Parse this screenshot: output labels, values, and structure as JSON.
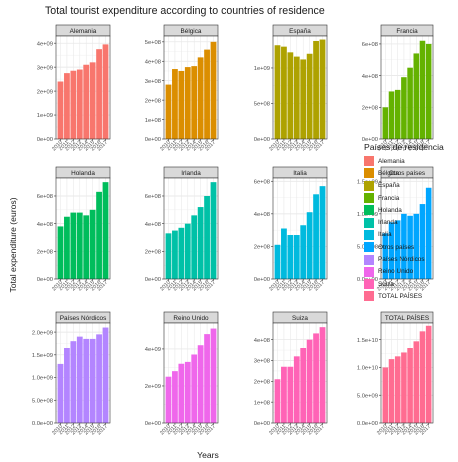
{
  "chart_data": {
    "type": "bar",
    "title": "Total tourist expenditure according to countries of residence",
    "xlabel": "Years",
    "ylabel": "Total expenditure (euros)",
    "legend_title": "Países de residencia",
    "legend_position": "right",
    "grid": true,
    "x": [
      "2010",
      "2011",
      "2012",
      "2013",
      "2014",
      "2015",
      "2016",
      "2017"
    ],
    "x_tick_labels": [
      "2010",
      "2011",
      "2012",
      "2013",
      "2014",
      "2015",
      "2016",
      "2017"
    ],
    "panels": [
      {
        "name": "Alemania",
        "color": "#F8766D",
        "values": [
          2400000000.0,
          2750000000.0,
          2850000000.0,
          2900000000.0,
          3100000000.0,
          3200000000.0,
          3750000000.0,
          3950000000.0
        ],
        "ylim": [
          0,
          4300000000.0
        ],
        "ticks": [
          0,
          1000000000.0,
          2000000000.0,
          3000000000.0,
          4000000000.0
        ],
        "tick_labels": [
          "0e+00",
          "1e+09",
          "2e+09",
          "3e+09",
          "4e+09"
        ]
      },
      {
        "name": "Bélgica",
        "color": "#DB8E00",
        "values": [
          280000000.0,
          360000000.0,
          350000000.0,
          370000000.0,
          375000000.0,
          420000000.0,
          460000000.0,
          500000000.0
        ],
        "ylim": [
          0,
          530000000.0
        ],
        "ticks": [
          0,
          100000000.0,
          200000000.0,
          300000000.0,
          400000000.0,
          500000000.0
        ],
        "tick_labels": [
          "0e+00",
          "1e+08",
          "2e+08",
          "3e+08",
          "4e+08",
          "5e+08"
        ]
      },
      {
        "name": "España",
        "color": "#AEA200",
        "values": [
          1320000000.0,
          1300000000.0,
          1220000000.0,
          1160000000.0,
          1120000000.0,
          1200000000.0,
          1380000000.0,
          1400000000.0
        ],
        "ylim": [
          0,
          1450000000.0
        ],
        "ticks": [
          0,
          500000000.0,
          1000000000.0
        ],
        "tick_labels": [
          "0e+00",
          "5e+08",
          "1e+09"
        ]
      },
      {
        "name": "Francia",
        "color": "#64B200",
        "values": [
          200000000.0,
          300000000.0,
          310000000.0,
          390000000.0,
          450000000.0,
          540000000.0,
          620000000.0,
          600000000.0
        ],
        "ylim": [
          0,
          650000000.0
        ],
        "ticks": [
          0,
          200000000.0,
          400000000.0,
          600000000.0
        ],
        "tick_labels": [
          "0e+00",
          "2e+08",
          "4e+08",
          "6e+08"
        ]
      },
      {
        "name": "Holanda",
        "color": "#00BD5C",
        "values": [
          380000000.0,
          450000000.0,
          480000000.0,
          480000000.0,
          460000000.0,
          500000000.0,
          630000000.0,
          700000000.0
        ],
        "ylim": [
          0,
          730000000.0
        ],
        "ticks": [
          0,
          200000000.0,
          400000000.0,
          600000000.0
        ],
        "tick_labels": [
          "0e+00",
          "2e+08",
          "4e+08",
          "6e+08"
        ]
      },
      {
        "name": "Irlanda",
        "color": "#00C1A7",
        "values": [
          330000000.0,
          350000000.0,
          370000000.0,
          400000000.0,
          460000000.0,
          520000000.0,
          600000000.0,
          700000000.0
        ],
        "ylim": [
          0,
          730000000.0
        ],
        "ticks": [
          0,
          200000000.0,
          400000000.0,
          600000000.0
        ],
        "tick_labels": [
          "0e+00",
          "2e+08",
          "4e+08",
          "6e+08"
        ]
      },
      {
        "name": "Italia",
        "color": "#00BADE",
        "values": [
          210000000.0,
          310000000.0,
          270000000.0,
          270000000.0,
          330000000.0,
          410000000.0,
          520000000.0,
          570000000.0
        ],
        "ylim": [
          0,
          620000000.0
        ],
        "ticks": [
          0,
          200000000.0,
          400000000.0,
          600000000.0
        ],
        "tick_labels": [
          "0e+00",
          "2e+08",
          "4e+08",
          "6e+08"
        ]
      },
      {
        "name": "Otros países",
        "color": "#00A6FF",
        "values": [
          700000000.0,
          870000000.0,
          900000000.0,
          1000000000.0,
          970000000.0,
          1000000000.0,
          1150000000.0,
          1400000000.0
        ],
        "ylim": [
          0,
          1550000000.0
        ],
        "ticks": [
          0,
          500000000.0,
          1000000000.0,
          1500000000.0
        ],
        "tick_labels": [
          "0.0e+00",
          "5.0e+08",
          "1.0e+09",
          "1.5e+09"
        ]
      },
      {
        "name": "Países Nórdicos",
        "color": "#B385FF",
        "values": [
          1300000000.0,
          1650000000.0,
          1800000000.0,
          1900000000.0,
          1850000000.0,
          1850000000.0,
          1950000000.0,
          2100000000.0
        ],
        "ylim": [
          0,
          2200000000.0
        ],
        "ticks": [
          0,
          500000000.0,
          1000000000.0,
          1500000000.0,
          2000000000.0
        ],
        "tick_labels": [
          "0.0e+00",
          "5.0e+08",
          "1.0e+09",
          "1.5e+09",
          "2.0e+09"
        ]
      },
      {
        "name": "Reino Unido",
        "color": "#EF67EB",
        "values": [
          2500000000.0,
          2800000000.0,
          3200000000.0,
          3300000000.0,
          3700000000.0,
          4200000000.0,
          4800000000.0,
          5100000000.0
        ],
        "ylim": [
          0,
          5400000000.0
        ],
        "ticks": [
          0,
          2000000000.0,
          4000000000.0
        ],
        "tick_labels": [
          "0e+00",
          "2e+09",
          "4e+09"
        ]
      },
      {
        "name": "Suiza",
        "color": "#FF63B6",
        "values": [
          210000000.0,
          270000000.0,
          270000000.0,
          320000000.0,
          360000000.0,
          400000000.0,
          430000000.0,
          460000000.0
        ],
        "ylim": [
          0,
          480000000.0
        ],
        "ticks": [
          0,
          100000000.0,
          200000000.0,
          300000000.0,
          400000000.0
        ],
        "tick_labels": [
          "0e+00",
          "1e+08",
          "2e+08",
          "3e+08",
          "4e+08"
        ]
      },
      {
        "name": "TOTAL PAÍSES",
        "color": "#FF6C91",
        "values": [
          10000000000.0,
          11500000000.0,
          12000000000.0,
          12700000000.0,
          13500000000.0,
          14700000000.0,
          16500000000.0,
          17500000000.0
        ],
        "ylim": [
          0,
          18000000000.0
        ],
        "ticks": [
          0,
          5000000000.0,
          10000000000.0,
          15000000000.0
        ],
        "tick_labels": [
          "0.0e+00",
          "5.0e+09",
          "1.0e+10",
          "1.5e+10"
        ]
      }
    ]
  }
}
